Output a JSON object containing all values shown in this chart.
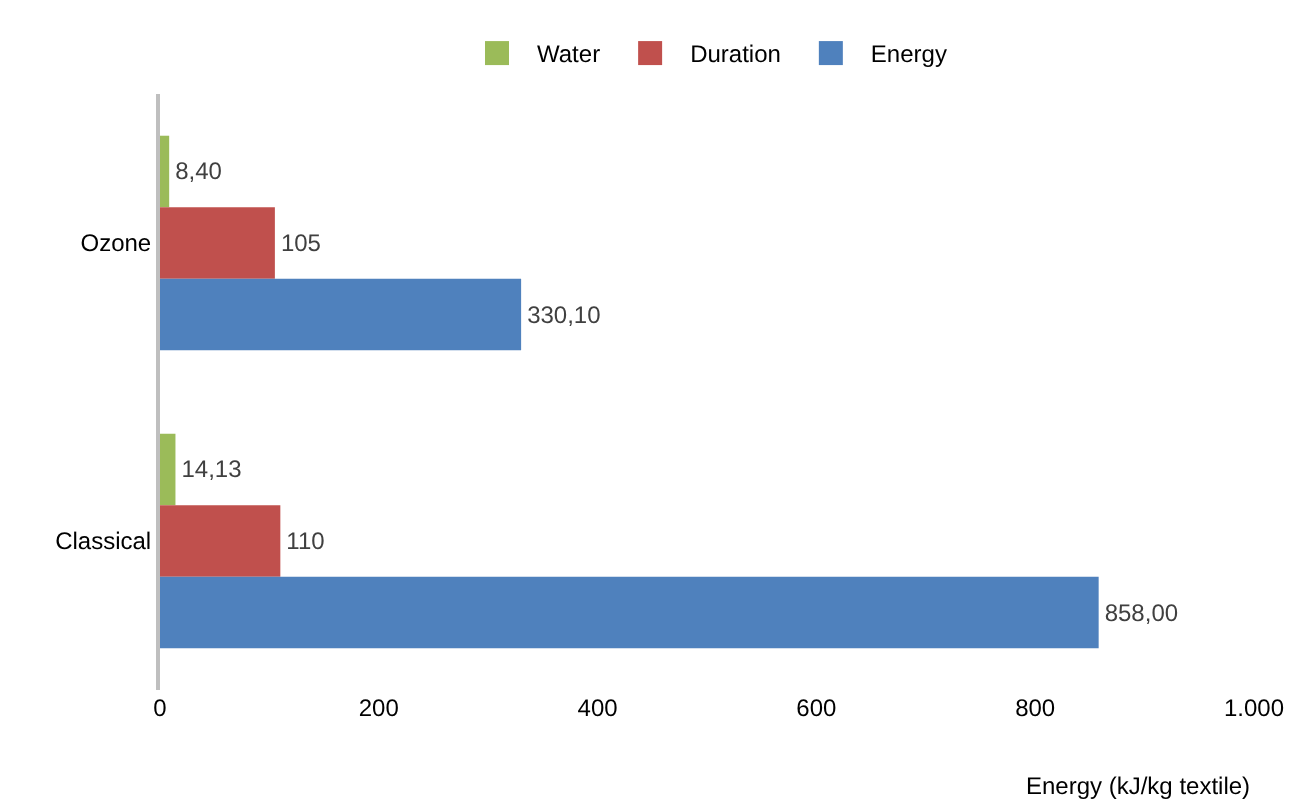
{
  "chart_data": {
    "type": "bar",
    "orientation": "horizontal",
    "xlabel": "Energy (kJ/kg textile)",
    "categories": [
      "Ozone",
      "Classical"
    ],
    "series": [
      {
        "name": "Water",
        "color": "#9bbb59",
        "values": [
          8.4,
          14.13
        ],
        "value_labels": [
          "8,40",
          "14,13"
        ]
      },
      {
        "name": "Duration",
        "color": "#c0504d",
        "values": [
          105,
          110
        ],
        "value_labels": [
          "105",
          "110"
        ]
      },
      {
        "name": "Energy",
        "color": "#4f81bd",
        "values": [
          330.1,
          858.0
        ],
        "value_labels": [
          "330,10",
          "858,00"
        ]
      }
    ],
    "xlim": [
      0,
      1000
    ],
    "xticks": [
      0,
      200,
      400,
      600,
      800,
      {
        "value": 1000,
        "label": "1.000"
      }
    ],
    "legend": "top"
  }
}
